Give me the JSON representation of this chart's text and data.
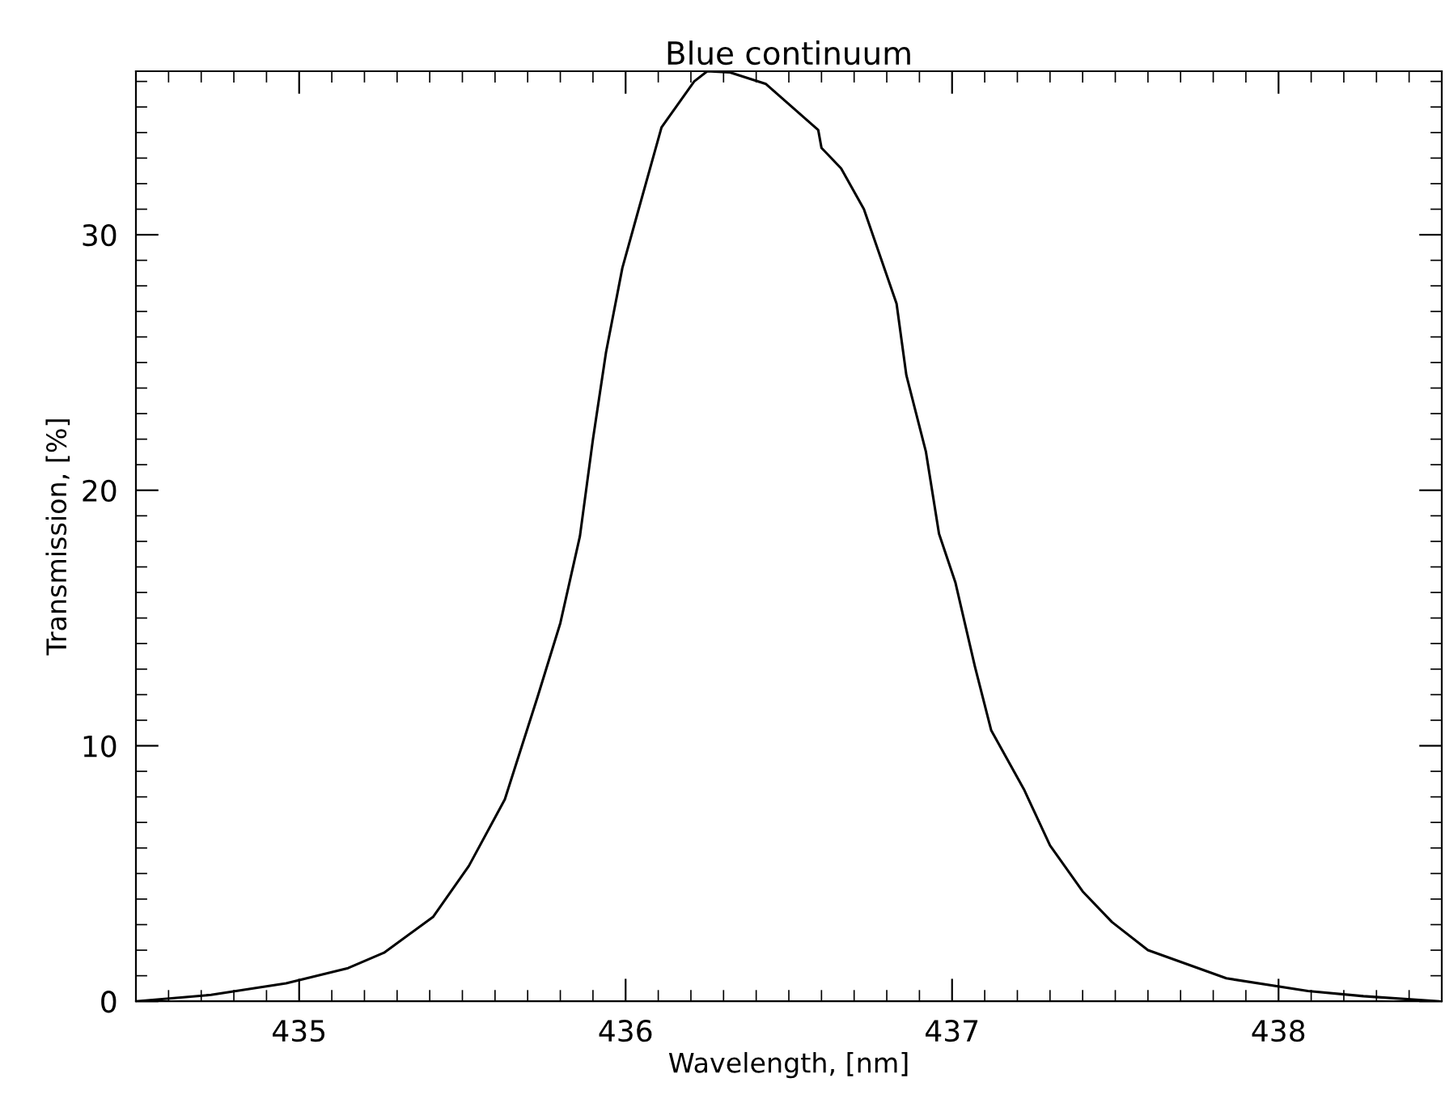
{
  "chart_data": {
    "type": "line",
    "title": "Blue continuum",
    "xlabel": "Wavelength, [nm]",
    "ylabel": "Transmission, [%]",
    "x": [
      434.5,
      434.73,
      434.96,
      435.15,
      435.26,
      435.41,
      435.52,
      435.63,
      435.73,
      435.8,
      435.86,
      435.9,
      435.94,
      435.99,
      436.04,
      436.11,
      436.21,
      436.25,
      436.32,
      436.43,
      436.59,
      436.6,
      436.66,
      436.73,
      436.83,
      436.86,
      436.92,
      436.96,
      437.01,
      437.07,
      437.12,
      437.22,
      437.3,
      437.4,
      437.49,
      437.6,
      437.84,
      438.09,
      438.26,
      438.49
    ],
    "series": [
      {
        "color": "#000000",
        "values": [
          0,
          0.25,
          0.7,
          1.3,
          1.9,
          3.3,
          5.3,
          7.9,
          11.9,
          14.8,
          18.2,
          22.0,
          25.4,
          28.7,
          31.0,
          34.2,
          36.0,
          36.4,
          36.35,
          35.9,
          34.1,
          33.4,
          32.6,
          31.0,
          27.3,
          24.5,
          21.5,
          18.3,
          16.4,
          13.1,
          10.6,
          8.3,
          6.1,
          4.3,
          3.1,
          2.0,
          0.9,
          0.4,
          0.2,
          0
        ]
      }
    ],
    "xlim": [
      434.5,
      438.5
    ],
    "xticks": [
      435,
      436,
      437,
      438
    ],
    "ylim": [
      0,
      36.4
    ],
    "yticks": [
      0,
      10,
      20,
      30
    ],
    "grid": false,
    "marker": "none",
    "line_style": "solid"
  }
}
